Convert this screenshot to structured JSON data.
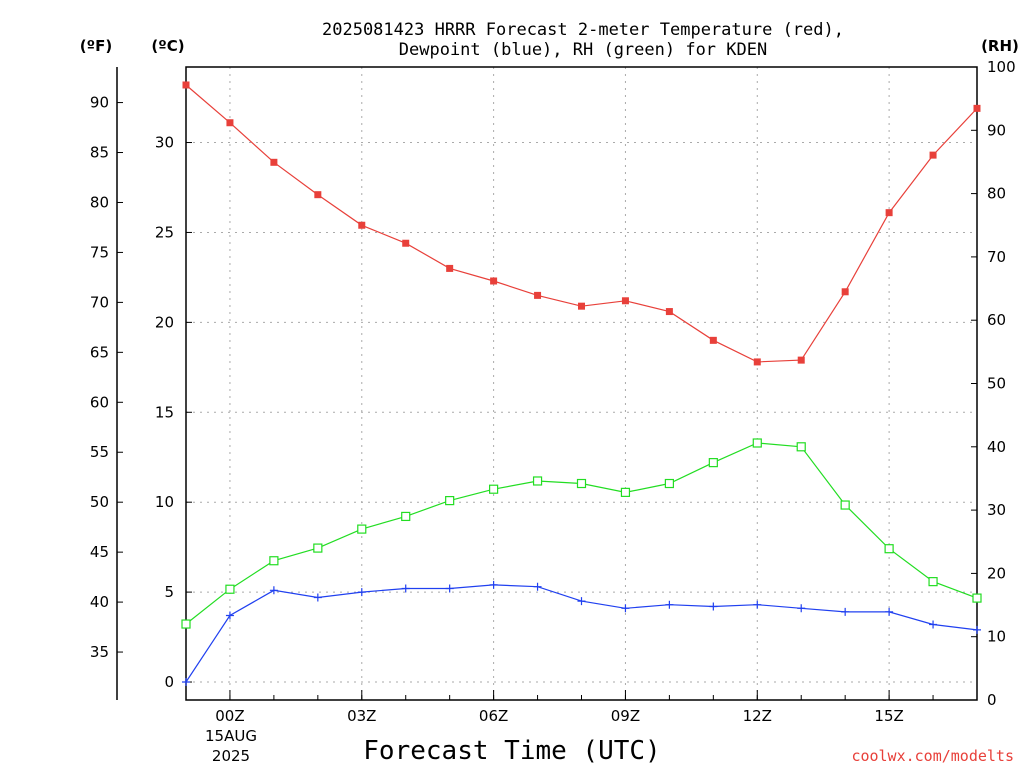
{
  "chart_data": {
    "type": "line",
    "title_line1": "2025081423 HRRR Forecast 2-meter Temperature (red),",
    "title_line2": "Dewpoint (blue), RH (green) for KDEN",
    "xlabel": "Forecast Time (UTC)",
    "credit": "coolwx.com/modelts",
    "date_label_line1": "15AUG",
    "date_label_line2": "2025",
    "unit_left_outer": "(ºF)",
    "unit_left_inner": "(ºC)",
    "unit_right": "(RH)",
    "x_ticks": [
      {
        "hour": 0,
        "label": "00Z"
      },
      {
        "hour": 3,
        "label": "03Z"
      },
      {
        "hour": 6,
        "label": "06Z"
      },
      {
        "hour": 9,
        "label": "09Z"
      },
      {
        "hour": 12,
        "label": "12Z"
      },
      {
        "hour": 15,
        "label": "15Z"
      }
    ],
    "xlim": [
      -1,
      17
    ],
    "ylim_c": [
      -1,
      34.2
    ],
    "ylim_rh": [
      0,
      100
    ],
    "f_ticks": [
      35,
      40,
      45,
      50,
      55,
      60,
      65,
      70,
      75,
      80,
      85,
      90
    ],
    "c_ticks": [
      0,
      5,
      10,
      15,
      20,
      25,
      30
    ],
    "rh_ticks": [
      0,
      10,
      20,
      30,
      40,
      50,
      60,
      70,
      80,
      90,
      100
    ],
    "x_hours": [
      -1,
      0,
      1,
      2,
      3,
      4,
      5,
      6,
      7,
      8,
      9,
      10,
      11,
      12,
      13,
      14,
      15,
      16,
      17
    ],
    "series": [
      {
        "name": "Temperature",
        "units": "C",
        "color": "#e8403a",
        "marker": "filled-square",
        "values": [
          33.2,
          31.1,
          28.9,
          27.1,
          25.4,
          24.4,
          23.0,
          22.3,
          21.5,
          20.9,
          21.2,
          20.6,
          19.0,
          17.8,
          17.9,
          21.7,
          26.1,
          29.3,
          31.9
        ]
      },
      {
        "name": "Dewpoint",
        "units": "C",
        "color": "#2040f0",
        "marker": "plus",
        "values": [
          0.0,
          3.7,
          5.1,
          4.7,
          5.0,
          5.2,
          5.2,
          5.4,
          5.3,
          4.5,
          4.1,
          4.3,
          4.2,
          4.3,
          4.1,
          3.9,
          3.9,
          3.2,
          2.9
        ]
      },
      {
        "name": "RH",
        "units": "%",
        "color": "#22dd22",
        "marker": "open-square",
        "values": [
          12,
          17.5,
          22,
          24,
          27,
          29,
          31.5,
          33.3,
          34.6,
          34.2,
          32.8,
          34.2,
          37.5,
          40.6,
          40.0,
          30.8,
          23.9,
          18.7,
          16.1
        ]
      }
    ]
  }
}
